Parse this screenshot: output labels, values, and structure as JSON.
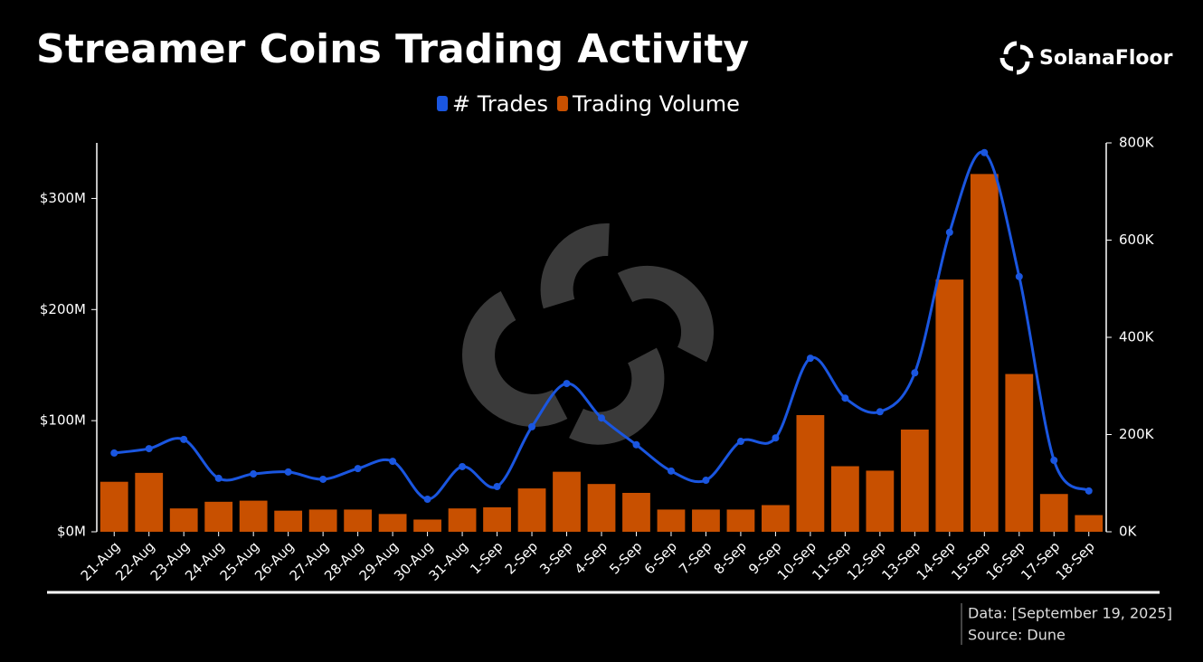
{
  "chart_data": {
    "type": "bar",
    "title": "Streamer Coins Trading Activity",
    "brand": "SolanaFloor",
    "notes": [
      "Data: [September 19, 2025]",
      "Source: Dune"
    ],
    "categories": [
      "21-Aug",
      "22-Aug",
      "23-Aug",
      "24-Aug",
      "25-Aug",
      "26-Aug",
      "27-Aug",
      "28-Aug",
      "29-Aug",
      "30-Aug",
      "31-Aug",
      "1-Sep",
      "2-Sep",
      "3-Sep",
      "4-Sep",
      "5-Sep",
      "6-Sep",
      "7-Sep",
      "8-Sep",
      "9-Sep",
      "10-Sep",
      "11-Sep",
      "12-Sep",
      "13-Sep",
      "14-Sep",
      "15-Sep",
      "16-Sep",
      "17-Sep",
      "18-Sep"
    ],
    "series": [
      {
        "name": "# Trades",
        "type": "line",
        "axis": "y2",
        "color": "#1a56e0",
        "values": [
          162000,
          171000,
          190000,
          110000,
          119000,
          123000,
          108000,
          130000,
          145000,
          67000,
          134000,
          93000,
          216000,
          305000,
          234000,
          179000,
          125000,
          106000,
          186000,
          193000,
          357000,
          275000,
          247000,
          327000,
          616000,
          780000,
          525000,
          147000,
          84000
        ]
      },
      {
        "name": "Trading Volume",
        "type": "bar",
        "color": "#c85000",
        "values": [
          45000000,
          53000000,
          21000000,
          27000000,
          28000000,
          19000000,
          20000000,
          20000000,
          16000000,
          11000000,
          21000000,
          22000000,
          39000000,
          54000000,
          43000000,
          35000000,
          20000000,
          20000000,
          20000000,
          24000000,
          105000000,
          59000000,
          55000000,
          92000000,
          227000000,
          322000000,
          142000000,
          34000000,
          15000000
        ]
      }
    ],
    "ylim": [
      0,
      350000000
    ],
    "yticks": [
      {
        "value": 0,
        "label": "$0M"
      },
      {
        "value": 100000000,
        "label": "$100M"
      },
      {
        "value": 200000000,
        "label": "$200M"
      },
      {
        "value": 300000000,
        "label": "$300M"
      }
    ],
    "y2lim": [
      0,
      800000
    ],
    "y2ticks": [
      {
        "value": 0,
        "label": "0K"
      },
      {
        "value": 200000,
        "label": "200K"
      },
      {
        "value": 400000,
        "label": "400K"
      },
      {
        "value": 600000,
        "label": "600K"
      },
      {
        "value": 800000,
        "label": "800K"
      }
    ]
  }
}
